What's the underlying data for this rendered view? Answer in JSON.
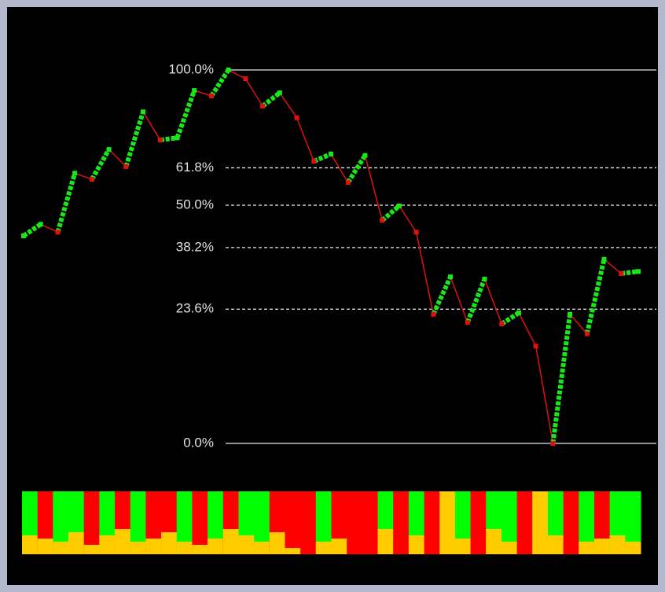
{
  "chart_data": {
    "type": "fibonacci",
    "log_scale": true,
    "price_ratio": 3.2,
    "ylim": [
      0,
      100
    ],
    "yticks": [
      {
        "value": 100,
        "label": "100.0%"
      },
      {
        "value": 61.8,
        "label": "61.8%"
      },
      {
        "value": 50,
        "label": "50.0%"
      },
      {
        "value": 38.2,
        "label": "38.2%"
      },
      {
        "value": 23.6,
        "label": "23.6%"
      },
      {
        "value": 0,
        "label": "0.0%"
      }
    ],
    "up_color": "#18e818",
    "down_color": "#e01010",
    "level_color": "#e8e8e8",
    "values": [
      41.3,
      44.5,
      42.3,
      60.0,
      58.0,
      68.1,
      62.2,
      82.2,
      71.5,
      72.3,
      91.0,
      88.7,
      100,
      96.1,
      84.5,
      90.0,
      79.9,
      64.0,
      66.5,
      57.0,
      66.0,
      45.6,
      49.8,
      42.3,
      22.5,
      30.9,
      20.8,
      30.4,
      20.5,
      22.8,
      16.1,
      0,
      22.5,
      18.5,
      35.2,
      31.7,
      32.2
    ],
    "strip": {
      "colors": [
        "#00ff00",
        "#ff0000",
        "#00ff00",
        "#00ff00",
        "#ff0000",
        "#00ff00",
        "#ff0000",
        "#00ff00",
        "#ff0000",
        "#ff0000",
        "#00ff00",
        "#ff0000",
        "#00ff00",
        "#ff0000",
        "#00ff00",
        "#00ff00",
        "#ff0000",
        "#ff0000",
        "#ff0000",
        "#00ff00",
        "#ff0000",
        "#ff0000",
        "#ff0000",
        "#00ff00",
        "#ff0000",
        "#00ff00",
        "#ff0000",
        "#ff0000",
        "#00ff00",
        "#ff0000",
        "#00ff00",
        "#00ff00",
        "#ff0000",
        "#00ff00",
        "#00ff00",
        "#ff0000",
        "#00ff00",
        "#ff0000",
        "#00ff00",
        "#00ff00"
      ],
      "values": [
        30,
        25,
        20,
        35,
        15,
        30,
        40,
        20,
        25,
        35,
        20,
        15,
        25,
        40,
        30,
        20,
        35,
        10,
        0,
        20,
        25,
        0,
        0,
        40,
        0,
        30,
        0,
        100,
        25,
        0,
        40,
        20,
        0,
        100,
        30,
        0,
        20,
        25,
        30,
        20
      ]
    }
  }
}
